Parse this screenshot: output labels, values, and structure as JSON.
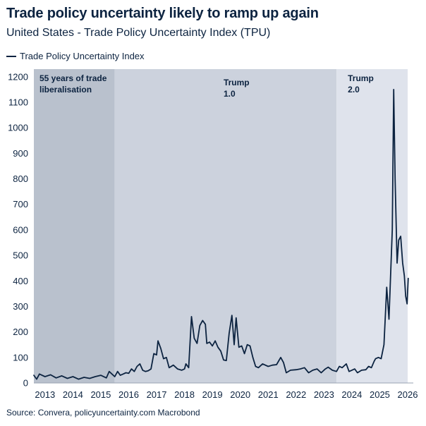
{
  "header": {
    "title": "Trade policy uncertainty likely to ramp up again",
    "subtitle": "United States - Trade Policy Uncertainty Index (TPU)"
  },
  "footer": {
    "source": "Source: Convera, policyuncertainty.com Macrobond"
  },
  "colors": {
    "line": "#0c2340",
    "band_liberalisation": "#b9c1cd",
    "band_trump1": "#ccd2dd",
    "band_gap": "#dfe3ec",
    "band_trump2": "#dfe3ec"
  },
  "chart_data": {
    "type": "line",
    "title": "Trade policy uncertainty likely to ramp up again",
    "subtitle": "United States - Trade Policy Uncertainty Index (TPU)",
    "xlim": [
      2012.6,
      2026.0
    ],
    "ylim": [
      0,
      1230
    ],
    "grid": false,
    "legend_position": "top-left",
    "x_ticks": [
      2013,
      2014,
      2015,
      2016,
      2017,
      2018,
      2019,
      2020,
      2021,
      2022,
      2023,
      2024,
      2025,
      2026
    ],
    "x_tick_labels": [
      "2013",
      "2014",
      "2015",
      "2016",
      "2017",
      "2018",
      "2019",
      "2020",
      "2021",
      "2022",
      "2023",
      "2024",
      "2025",
      "2026"
    ],
    "y_ticks": [
      0,
      100,
      200,
      300,
      400,
      500,
      600,
      700,
      800,
      900,
      1000,
      1100,
      1200
    ],
    "y_tick_labels": [
      "0",
      "100",
      "200",
      "300",
      "400",
      "500",
      "600",
      "700",
      "800",
      "900",
      "1000",
      "1100",
      "1200"
    ],
    "shaded_regions": [
      {
        "start": 2012.6,
        "end": 2015.5,
        "label_line1": "55 years of trade",
        "label_line2": "liberalisation"
      },
      {
        "start": 2015.5,
        "end": 2023.45,
        "label_line1": "Trump",
        "label_line2": "1.0"
      },
      {
        "start": 2023.45,
        "end": 2026.0,
        "label_line1": "Trump",
        "label_line2": "2.0"
      }
    ],
    "series": [
      {
        "name": "Trade Policy Uncertainty Index",
        "points": [
          [
            2012.6,
            30
          ],
          [
            2012.7,
            15
          ],
          [
            2012.8,
            35
          ],
          [
            2013.0,
            25
          ],
          [
            2013.2,
            32
          ],
          [
            2013.4,
            20
          ],
          [
            2013.6,
            28
          ],
          [
            2013.8,
            18
          ],
          [
            2014.0,
            25
          ],
          [
            2014.2,
            15
          ],
          [
            2014.4,
            22
          ],
          [
            2014.6,
            18
          ],
          [
            2014.8,
            25
          ],
          [
            2015.0,
            30
          ],
          [
            2015.2,
            20
          ],
          [
            2015.3,
            45
          ],
          [
            2015.4,
            35
          ],
          [
            2015.5,
            25
          ],
          [
            2015.6,
            45
          ],
          [
            2015.7,
            30
          ],
          [
            2015.8,
            35
          ],
          [
            2015.9,
            40
          ],
          [
            2016.0,
            38
          ],
          [
            2016.1,
            55
          ],
          [
            2016.2,
            45
          ],
          [
            2016.3,
            65
          ],
          [
            2016.4,
            75
          ],
          [
            2016.5,
            50
          ],
          [
            2016.6,
            45
          ],
          [
            2016.7,
            48
          ],
          [
            2016.8,
            55
          ],
          [
            2016.9,
            115
          ],
          [
            2017.0,
            110
          ],
          [
            2017.05,
            165
          ],
          [
            2017.15,
            135
          ],
          [
            2017.25,
            95
          ],
          [
            2017.35,
            100
          ],
          [
            2017.45,
            60
          ],
          [
            2017.6,
            70
          ],
          [
            2017.75,
            55
          ],
          [
            2017.9,
            50
          ],
          [
            2018.0,
            55
          ],
          [
            2018.05,
            75
          ],
          [
            2018.15,
            60
          ],
          [
            2018.25,
            260
          ],
          [
            2018.35,
            175
          ],
          [
            2018.45,
            155
          ],
          [
            2018.55,
            225
          ],
          [
            2018.65,
            245
          ],
          [
            2018.75,
            230
          ],
          [
            2018.8,
            155
          ],
          [
            2018.9,
            160
          ],
          [
            2019.0,
            145
          ],
          [
            2019.1,
            165
          ],
          [
            2019.2,
            140
          ],
          [
            2019.3,
            125
          ],
          [
            2019.4,
            90
          ],
          [
            2019.5,
            88
          ],
          [
            2019.6,
            195
          ],
          [
            2019.7,
            265
          ],
          [
            2019.78,
            150
          ],
          [
            2019.85,
            255
          ],
          [
            2019.95,
            140
          ],
          [
            2020.05,
            145
          ],
          [
            2020.15,
            115
          ],
          [
            2020.25,
            150
          ],
          [
            2020.35,
            145
          ],
          [
            2020.45,
            100
          ],
          [
            2020.55,
            65
          ],
          [
            2020.65,
            60
          ],
          [
            2020.8,
            75
          ],
          [
            2021.0,
            65
          ],
          [
            2021.15,
            70
          ],
          [
            2021.3,
            72
          ],
          [
            2021.45,
            100
          ],
          [
            2021.55,
            80
          ],
          [
            2021.65,
            40
          ],
          [
            2021.8,
            50
          ],
          [
            2022.0,
            52
          ],
          [
            2022.15,
            55
          ],
          [
            2022.3,
            60
          ],
          [
            2022.45,
            40
          ],
          [
            2022.6,
            50
          ],
          [
            2022.75,
            55
          ],
          [
            2022.9,
            40
          ],
          [
            2023.05,
            55
          ],
          [
            2023.15,
            62
          ],
          [
            2023.3,
            50
          ],
          [
            2023.45,
            45
          ],
          [
            2023.55,
            65
          ],
          [
            2023.65,
            60
          ],
          [
            2023.8,
            75
          ],
          [
            2023.9,
            45
          ],
          [
            2024.0,
            50
          ],
          [
            2024.1,
            55
          ],
          [
            2024.2,
            40
          ],
          [
            2024.35,
            50
          ],
          [
            2024.5,
            52
          ],
          [
            2024.6,
            65
          ],
          [
            2024.7,
            60
          ],
          [
            2024.8,
            85
          ],
          [
            2024.85,
            95
          ],
          [
            2024.95,
            100
          ],
          [
            2025.05,
            95
          ],
          [
            2025.15,
            150
          ],
          [
            2025.25,
            375
          ],
          [
            2025.33,
            250
          ],
          [
            2025.45,
            600
          ],
          [
            2025.5,
            1150
          ],
          [
            2025.55,
            800
          ],
          [
            2025.62,
            470
          ],
          [
            2025.68,
            560
          ],
          [
            2025.75,
            575
          ],
          [
            2025.82,
            470
          ],
          [
            2025.88,
            420
          ],
          [
            2025.93,
            340
          ],
          [
            2025.98,
            310
          ],
          [
            2026.02,
            410
          ]
        ]
      }
    ]
  }
}
